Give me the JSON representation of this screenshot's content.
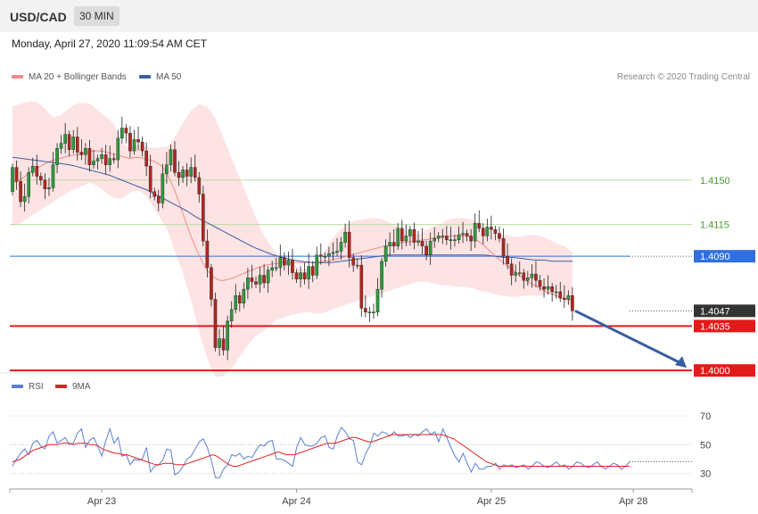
{
  "header": {
    "symbol": "USD/CAD",
    "timeframe": "30 MIN",
    "datetime": "Monday, April 27, 2020 11:09:54 AM CET"
  },
  "legend": {
    "ma20_label": "MA 20 + Bollinger Bands",
    "ma20_color": "#f08a8a",
    "ma50_label": "MA 50",
    "ma50_color": "#3a5fa0",
    "rsi_label": "RSI",
    "rsi_color": "#5b7fcf",
    "ma9_label": "9MA",
    "ma9_color": "#e02020"
  },
  "credit": "Research © 2020 Trading Central",
  "chart_data": {
    "type": "candlestick",
    "price_axis": {
      "min": 1.3998,
      "max": 1.4223
    },
    "x_ticks": [
      {
        "label": "Apr 23",
        "index": 22
      },
      {
        "label": "Apr 24",
        "index": 70
      },
      {
        "label": "Apr 25",
        "index": 118
      },
      {
        "label": "Apr 28",
        "index": 153
      }
    ],
    "close_start": 1.4141,
    "closes": [
      1.416,
      1.4149,
      1.4133,
      1.4137,
      1.4156,
      1.4161,
      1.4153,
      1.415,
      1.4143,
      1.4144,
      1.4162,
      1.4175,
      1.4179,
      1.4186,
      1.4174,
      1.4184,
      1.4172,
      1.417,
      1.4175,
      1.4162,
      1.4165,
      1.4167,
      1.417,
      1.4162,
      1.4167,
      1.4166,
      1.4183,
      1.4191,
      1.4187,
      1.4173,
      1.4182,
      1.418,
      1.4173,
      1.4161,
      1.4141,
      1.4137,
      1.4132,
      1.4155,
      1.4162,
      1.4174,
      1.4156,
      1.4152,
      1.4158,
      1.4153,
      1.416,
      1.4152,
      1.4139,
      1.4102,
      1.4081,
      1.4056,
      1.4018,
      1.4025,
      1.4016,
      1.4039,
      1.4048,
      1.4059,
      1.4053,
      1.4064,
      1.4073,
      1.407,
      1.4068,
      1.4075,
      1.4069,
      1.4079,
      1.4081,
      1.4081,
      1.4089,
      1.4083,
      1.4087,
      1.4077,
      1.4072,
      1.4077,
      1.4072,
      1.4082,
      1.4075,
      1.4091,
      1.409,
      1.409,
      1.4092,
      1.4093,
      1.4094,
      1.4101,
      1.4109,
      1.4089,
      1.4083,
      1.4083,
      1.4049,
      1.4046,
      1.4046,
      1.4046,
      1.4064,
      1.4086,
      1.4098,
      1.4101,
      1.4098,
      1.4112,
      1.4102,
      1.4106,
      1.4111,
      1.4101,
      1.4102,
      1.4098,
      1.4091,
      1.4102,
      1.4104,
      1.4106,
      1.4106,
      1.4103,
      1.4103,
      1.4103,
      1.4107,
      1.4108,
      1.4106,
      1.4102,
      1.4116,
      1.4112,
      1.4106,
      1.4113,
      1.4111,
      1.4108,
      1.4104,
      1.409,
      1.4084,
      1.4075,
      1.4077,
      1.4077,
      1.4071,
      1.4073,
      1.4076,
      1.4071,
      1.4066,
      1.4064,
      1.4066,
      1.4062,
      1.4062,
      1.4057,
      1.4056,
      1.4059,
      1.4047
    ],
    "ma20": [
      1.4148,
      1.4149,
      1.4151,
      1.4154,
      1.4157,
      1.4159,
      1.4161,
      1.4163,
      1.4165,
      1.4166,
      1.4167,
      1.4168,
      1.4169,
      1.417,
      1.417,
      1.4171,
      1.4172,
      1.4173,
      1.4173,
      1.4173,
      1.4172,
      1.4171,
      1.417,
      1.4169,
      1.4168,
      1.4167,
      1.4168,
      1.4168,
      1.4167,
      1.4166,
      1.4165,
      1.4163,
      1.416,
      1.4154,
      1.4146,
      1.4137,
      1.4126,
      1.4115,
      1.4105,
      1.4096,
      1.4088,
      1.4081,
      1.4076,
      1.4073,
      1.4071,
      1.4071,
      1.4072,
      1.4073,
      1.4075,
      1.4076,
      1.4078,
      1.4079,
      1.4081,
      1.4082,
      1.4083,
      1.4084,
      1.4084,
      1.4085,
      1.4085,
      1.4085,
      1.4085,
      1.4085,
      1.4085,
      1.4085,
      1.4085,
      1.4085,
      1.4086,
      1.4086,
      1.4087,
      1.4088,
      1.4089,
      1.409,
      1.4091,
      1.4092,
      1.4093,
      1.4094,
      1.4095,
      1.4096,
      1.4097,
      1.4098,
      1.4098,
      1.4099,
      1.41,
      1.4101,
      1.4101,
      1.4102,
      1.4102,
      1.4103,
      1.4103,
      1.4104,
      1.4105,
      1.4105,
      1.4105,
      1.4106,
      1.4106,
      1.4106,
      1.4106,
      1.4106,
      1.4104,
      1.4102,
      1.4099,
      1.4096,
      1.4092,
      1.4089,
      1.4086,
      1.4083,
      1.408,
      1.4077,
      1.4074,
      1.4071,
      1.4069,
      1.4067,
      1.4065,
      1.4063,
      1.4061,
      1.406,
      1.4058,
      1.4057,
      1.4056,
      1.4055
    ],
    "ma50": [
      1.4168,
      1.4167,
      1.4166,
      1.4165,
      1.4164,
      1.4163,
      1.4162,
      1.416,
      1.4158,
      1.4156,
      1.4154,
      1.4151,
      1.4148,
      1.4145,
      1.4142,
      1.4138,
      1.4134,
      1.413,
      1.4126,
      1.4121,
      1.4117,
      1.4113,
      1.4109,
      1.4105,
      1.4101,
      1.4097,
      1.4094,
      1.4091,
      1.4089,
      1.4087,
      1.4086,
      1.4085,
      1.4085,
      1.4085,
      1.4086,
      1.4087,
      1.4088,
      1.4089,
      1.409,
      1.4091,
      1.4091,
      1.4091,
      1.4091,
      1.4091,
      1.4091,
      1.4091,
      1.4091,
      1.4091,
      1.4091,
      1.4091,
      1.409,
      1.4089,
      1.4089,
      1.4088,
      1.4087,
      1.4087,
      1.4086,
      1.4086,
      1.4086
    ],
    "bb_upper": [
      1.4208,
      1.421,
      1.4212,
      1.4212,
      1.4208,
      1.42,
      1.42,
      1.4205,
      1.421,
      1.4211,
      1.421,
      1.4205,
      1.42,
      1.4195,
      1.418,
      1.4175,
      1.4178,
      1.4177,
      1.4175,
      1.4176,
      1.4176,
      1.4185,
      1.4196,
      1.4205,
      1.421,
      1.4208,
      1.42,
      1.4185,
      1.417,
      1.4155,
      1.414,
      1.4125,
      1.411,
      1.41,
      1.4092,
      1.4088,
      1.4085,
      1.408,
      1.408,
      1.4085,
      1.4093,
      1.4103,
      1.411,
      1.4115,
      1.4118,
      1.4119,
      1.412,
      1.412,
      1.4118,
      1.4115,
      1.4112,
      1.411,
      1.4106,
      1.411,
      1.4113,
      1.4115,
      1.4119,
      1.412,
      1.412,
      1.4119,
      1.4116,
      1.411,
      1.4108,
      1.4107,
      1.4106,
      1.4105,
      1.4106,
      1.4107,
      1.4106,
      1.4103,
      1.41,
      1.4098,
      1.4093
    ],
    "bb_lower": [
      1.4114,
      1.4116,
      1.412,
      1.4124,
      1.4128,
      1.4132,
      1.4136,
      1.414,
      1.4143,
      1.4145,
      1.4148,
      1.4145,
      1.414,
      1.4136,
      1.4135,
      1.414,
      1.4142,
      1.4139,
      1.413,
      1.412,
      1.411,
      1.4092,
      1.4075,
      1.4055,
      1.403,
      1.401,
      1.3995,
      1.3995,
      1.4,
      1.4009,
      1.4018,
      1.4026,
      1.403,
      1.4035,
      1.404,
      1.4042,
      1.4044,
      1.4045,
      1.4046,
      1.4045,
      1.4045,
      1.4048,
      1.405,
      1.4052,
      1.4054,
      1.4056,
      1.4058,
      1.406,
      1.4062,
      1.4064,
      1.4066,
      1.4068,
      1.407,
      1.407,
      1.4069,
      1.4067,
      1.4067,
      1.4066,
      1.4066,
      1.4065,
      1.4063,
      1.4062,
      1.406,
      1.4059,
      1.4058,
      1.4058,
      1.4059,
      1.4059,
      1.4059,
      1.406,
      1.4058,
      1.4055,
      1.4048
    ],
    "levels": [
      {
        "value": 1.415,
        "label": "1.4150",
        "kind": "resistance-green"
      },
      {
        "value": 1.4115,
        "label": "1.4115",
        "kind": "resistance-green"
      },
      {
        "value": 1.409,
        "label": "1.4090",
        "kind": "ma-level",
        "color": "#2f6fe0"
      },
      {
        "value": 1.4047,
        "label": "1.4047",
        "kind": "last-price",
        "color": "#333333"
      },
      {
        "value": 1.4035,
        "label": "1.4035",
        "kind": "support",
        "color": "#e31a1a"
      },
      {
        "value": 1.4,
        "label": "1.4000",
        "kind": "support",
        "color": "#e31a1a"
      }
    ],
    "rsi": {
      "axis": {
        "min": 21,
        "max": 80
      },
      "ticks": [
        70,
        50,
        30
      ],
      "values": [
        35,
        40,
        44,
        47,
        43,
        51,
        53,
        49,
        47,
        56,
        59,
        51,
        53,
        55,
        50,
        51,
        58,
        61,
        48,
        53,
        55,
        49,
        42,
        53,
        61,
        51,
        55,
        42,
        43,
        36,
        40,
        39,
        40,
        48,
        31,
        35,
        36,
        39,
        47,
        46,
        29,
        31,
        35,
        40,
        42,
        47,
        52,
        54,
        48,
        39,
        27,
        27,
        33,
        36,
        43,
        42,
        44,
        40,
        42,
        41,
        46,
        50,
        49,
        52,
        53,
        40,
        40,
        39,
        37,
        35,
        48,
        55,
        50,
        49,
        49,
        51,
        55,
        56,
        48,
        47,
        56,
        62,
        59,
        54,
        53,
        38,
        36,
        44,
        49,
        58,
        56,
        59,
        58,
        56,
        59,
        56,
        56,
        57,
        55,
        57,
        56,
        59,
        61,
        57,
        59,
        52,
        61,
        55,
        48,
        42,
        38,
        44,
        37,
        31,
        37,
        33,
        33,
        35,
        35,
        37,
        33,
        36,
        35,
        36,
        34,
        35,
        36,
        33,
        35,
        38,
        37,
        35,
        34,
        36,
        38,
        35,
        36,
        33,
        35,
        38,
        37,
        35,
        34,
        36,
        38,
        35,
        33,
        35,
        37,
        36,
        33,
        35,
        38
      ],
      "ma9": [
        38,
        39,
        40,
        42,
        44,
        46,
        47,
        48,
        49,
        50,
        50,
        50,
        51,
        51,
        51,
        50,
        51,
        51,
        51,
        50,
        50,
        49,
        47,
        46,
        45,
        44,
        44,
        43,
        43,
        42,
        41,
        40,
        39,
        38,
        37,
        36,
        36,
        37,
        37,
        37,
        36,
        36,
        36,
        37,
        38,
        39,
        40,
        41,
        42,
        43,
        42,
        40,
        38,
        36,
        35,
        35,
        36,
        37,
        38,
        39,
        40,
        41,
        42,
        43,
        44,
        45,
        44,
        43,
        43,
        43,
        44,
        45,
        46,
        47,
        48,
        49,
        50,
        51,
        51,
        51,
        52,
        53,
        54,
        55,
        55,
        54,
        53,
        52,
        52,
        53,
        54,
        55,
        56,
        57,
        57,
        57,
        57,
        57,
        57,
        57,
        57,
        57,
        57,
        57,
        57,
        57,
        56,
        55,
        54,
        52,
        50,
        48,
        46,
        44,
        42,
        40,
        38,
        37,
        36,
        35,
        35,
        35,
        35,
        35,
        35,
        35,
        35,
        35,
        35,
        35,
        35,
        35,
        35,
        35,
        35,
        35,
        35,
        35,
        35,
        35,
        35,
        35,
        35,
        35,
        35,
        35,
        35,
        35,
        35,
        35,
        35,
        35
      ]
    },
    "arrow": {
      "from_value": 1.4047,
      "to_value": 1.4,
      "color": "#3a5fa0"
    }
  }
}
